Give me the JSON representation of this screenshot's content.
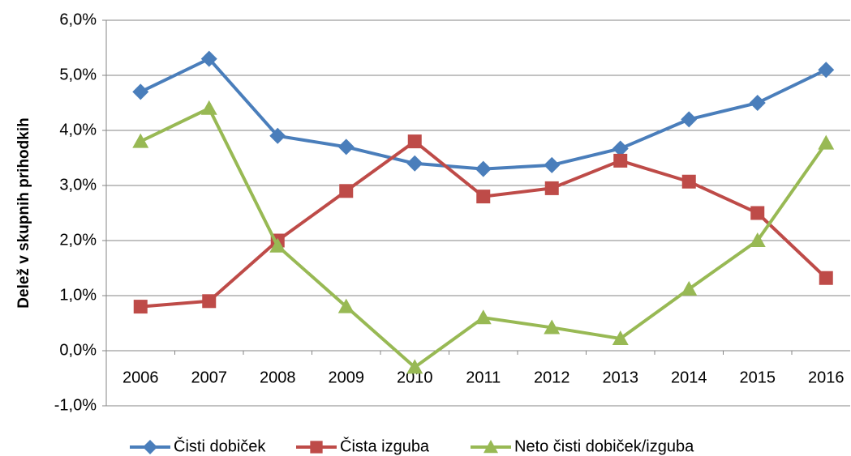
{
  "chart_data": {
    "type": "line",
    "y_label": "Delež v skupnih prihodkih",
    "categories": [
      "2006",
      "2007",
      "2008",
      "2009",
      "2010",
      "2011",
      "2012",
      "2013",
      "2014",
      "2015",
      "2016"
    ],
    "series": [
      {
        "name": "Čisti dobiček",
        "color": "#4a7ebb",
        "marker": "diamond",
        "values": [
          4.7,
          5.3,
          3.9,
          3.7,
          3.4,
          3.3,
          3.37,
          3.67,
          4.2,
          4.5,
          5.1
        ]
      },
      {
        "name": "Čista izguba",
        "color": "#be4b48",
        "marker": "square",
        "values": [
          0.8,
          0.9,
          2.0,
          2.9,
          3.8,
          2.8,
          2.95,
          3.45,
          3.07,
          2.5,
          1.32
        ]
      },
      {
        "name": "Neto čisti dobiček/izguba",
        "color": "#98b954",
        "marker": "triangle",
        "values": [
          3.8,
          4.4,
          1.9,
          0.8,
          -0.3,
          0.6,
          0.42,
          0.22,
          1.12,
          2.0,
          3.77
        ]
      }
    ],
    "ylim": [
      -1,
      6
    ],
    "yticks": [
      {
        "value": -1,
        "label": "-1,0%"
      },
      {
        "value": 0,
        "label": "0,0%"
      },
      {
        "value": 1,
        "label": "1,0%"
      },
      {
        "value": 2,
        "label": "2,0%"
      },
      {
        "value": 3,
        "label": "3,0%"
      },
      {
        "value": 4,
        "label": "4,0%"
      },
      {
        "value": 5,
        "label": "5,0%"
      },
      {
        "value": 6,
        "label": "6,0%"
      }
    ],
    "grid": true,
    "legend": "bottom"
  }
}
